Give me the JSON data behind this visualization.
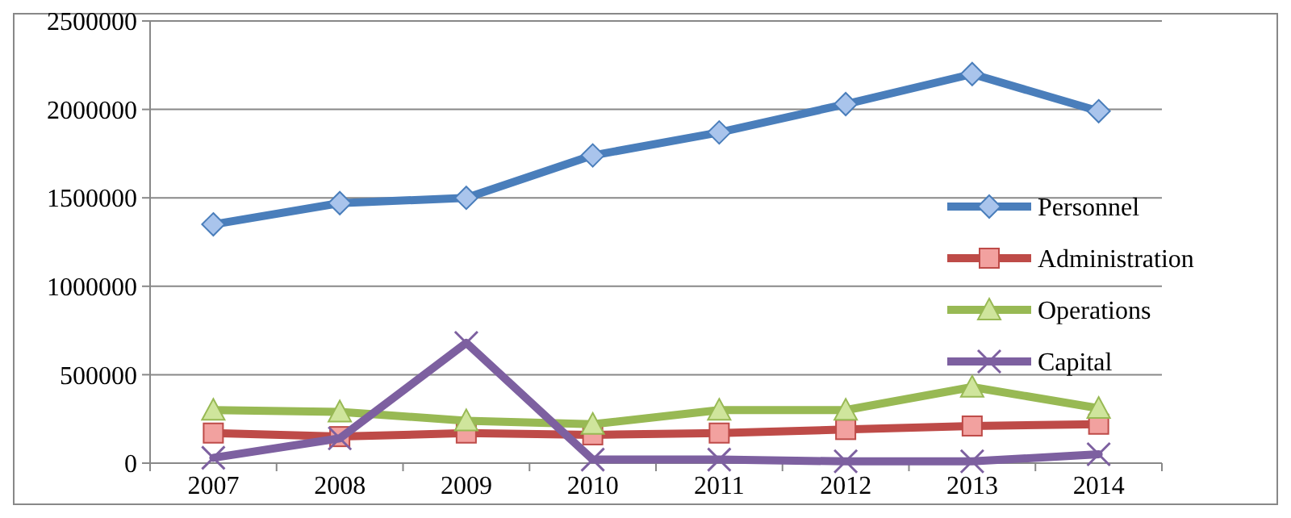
{
  "chart_data": {
    "type": "line",
    "categories": [
      "2007",
      "2008",
      "2009",
      "2010",
      "2011",
      "2012",
      "2013",
      "2014"
    ],
    "ylim": [
      0,
      2500000
    ],
    "yticks": [
      0,
      500000,
      1000000,
      1500000,
      2000000,
      2500000
    ],
    "grid": "y",
    "legend": "right",
    "series": [
      {
        "name": "Personnel",
        "color": "#4a7ebb",
        "marker": "diamond",
        "values": [
          1350000,
          1470000,
          1500000,
          1740000,
          1870000,
          2030000,
          2200000,
          1990000
        ]
      },
      {
        "name": "Administration",
        "color": "#be4b48",
        "marker": "square",
        "values": [
          170000,
          150000,
          170000,
          160000,
          170000,
          190000,
          210000,
          220000
        ]
      },
      {
        "name": "Operations",
        "color": "#98b954",
        "marker": "triangle",
        "values": [
          300000,
          290000,
          240000,
          220000,
          300000,
          300000,
          430000,
          310000
        ]
      },
      {
        "name": "Capital",
        "color": "#7d60a0",
        "marker": "cross",
        "values": [
          30000,
          140000,
          680000,
          20000,
          20000,
          10000,
          10000,
          50000
        ]
      }
    ]
  }
}
